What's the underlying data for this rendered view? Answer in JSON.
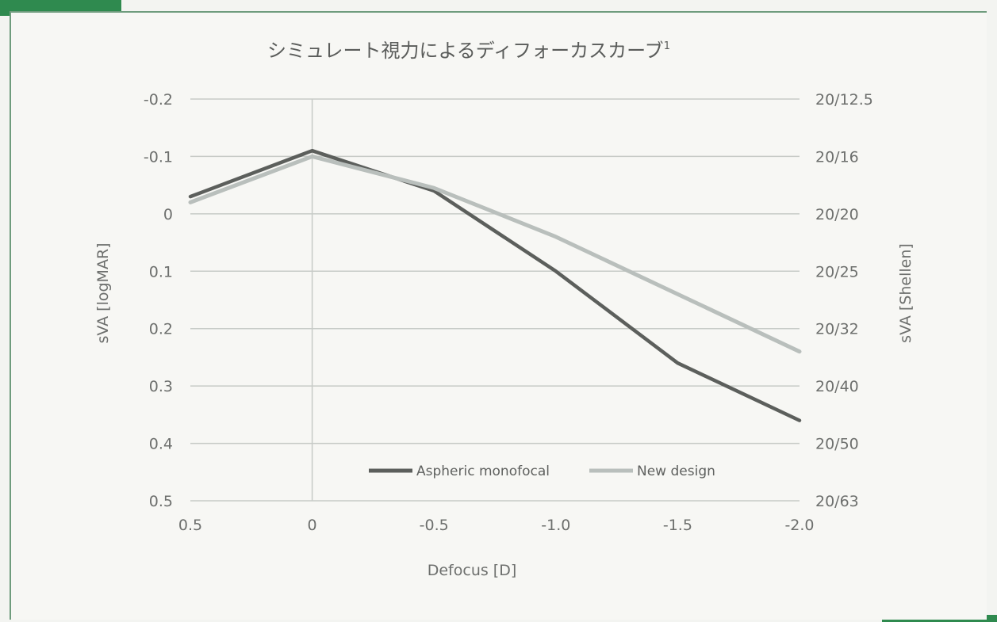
{
  "colors": {
    "aspheric": "#5c5f5c",
    "new_design": "#b9bfbc",
    "grid": "#c7cbc7",
    "accent_green": "#2f8a4f"
  },
  "chart_data": {
    "type": "line",
    "title": "シミュレート視力によるディフォーカスカーブ",
    "title_superscript": "1",
    "xlabel": "Defocus [D]",
    "ylabel_left": "sVA [logMAR]",
    "ylabel_right": "sVA [Shellen]",
    "x": [
      0.5,
      0,
      -0.5,
      -1.0,
      -1.5,
      -2.0
    ],
    "x_tick_labels": [
      "0.5",
      "0",
      "-0.5",
      "-1.0",
      "-1.5",
      "-2.0"
    ],
    "xlim": [
      0.5,
      -2.0
    ],
    "ylim": [
      -0.2,
      0.5
    ],
    "y_inverted": true,
    "y_ticks": [
      -0.2,
      -0.1,
      0,
      0.1,
      0.2,
      0.3,
      0.4,
      0.5
    ],
    "y_tick_labels": [
      "-0.2",
      "-0.1",
      "0",
      "0.1",
      "0.2",
      "0.3",
      "0.4",
      "0.5"
    ],
    "y_right_tick_labels": [
      "20/12.5",
      "20/16",
      "20/20",
      "20/25",
      "20/32",
      "20/40",
      "20/50",
      "20/63"
    ],
    "grid": "horizontal",
    "legend_position": "bottom-center",
    "series": [
      {
        "name": "Aspheric monofocal",
        "values": [
          -0.03,
          -0.11,
          -0.04,
          0.1,
          0.26,
          0.36
        ]
      },
      {
        "name": "New design",
        "values": [
          -0.02,
          -0.1,
          -0.045,
          0.04,
          0.14,
          0.24
        ]
      }
    ]
  }
}
